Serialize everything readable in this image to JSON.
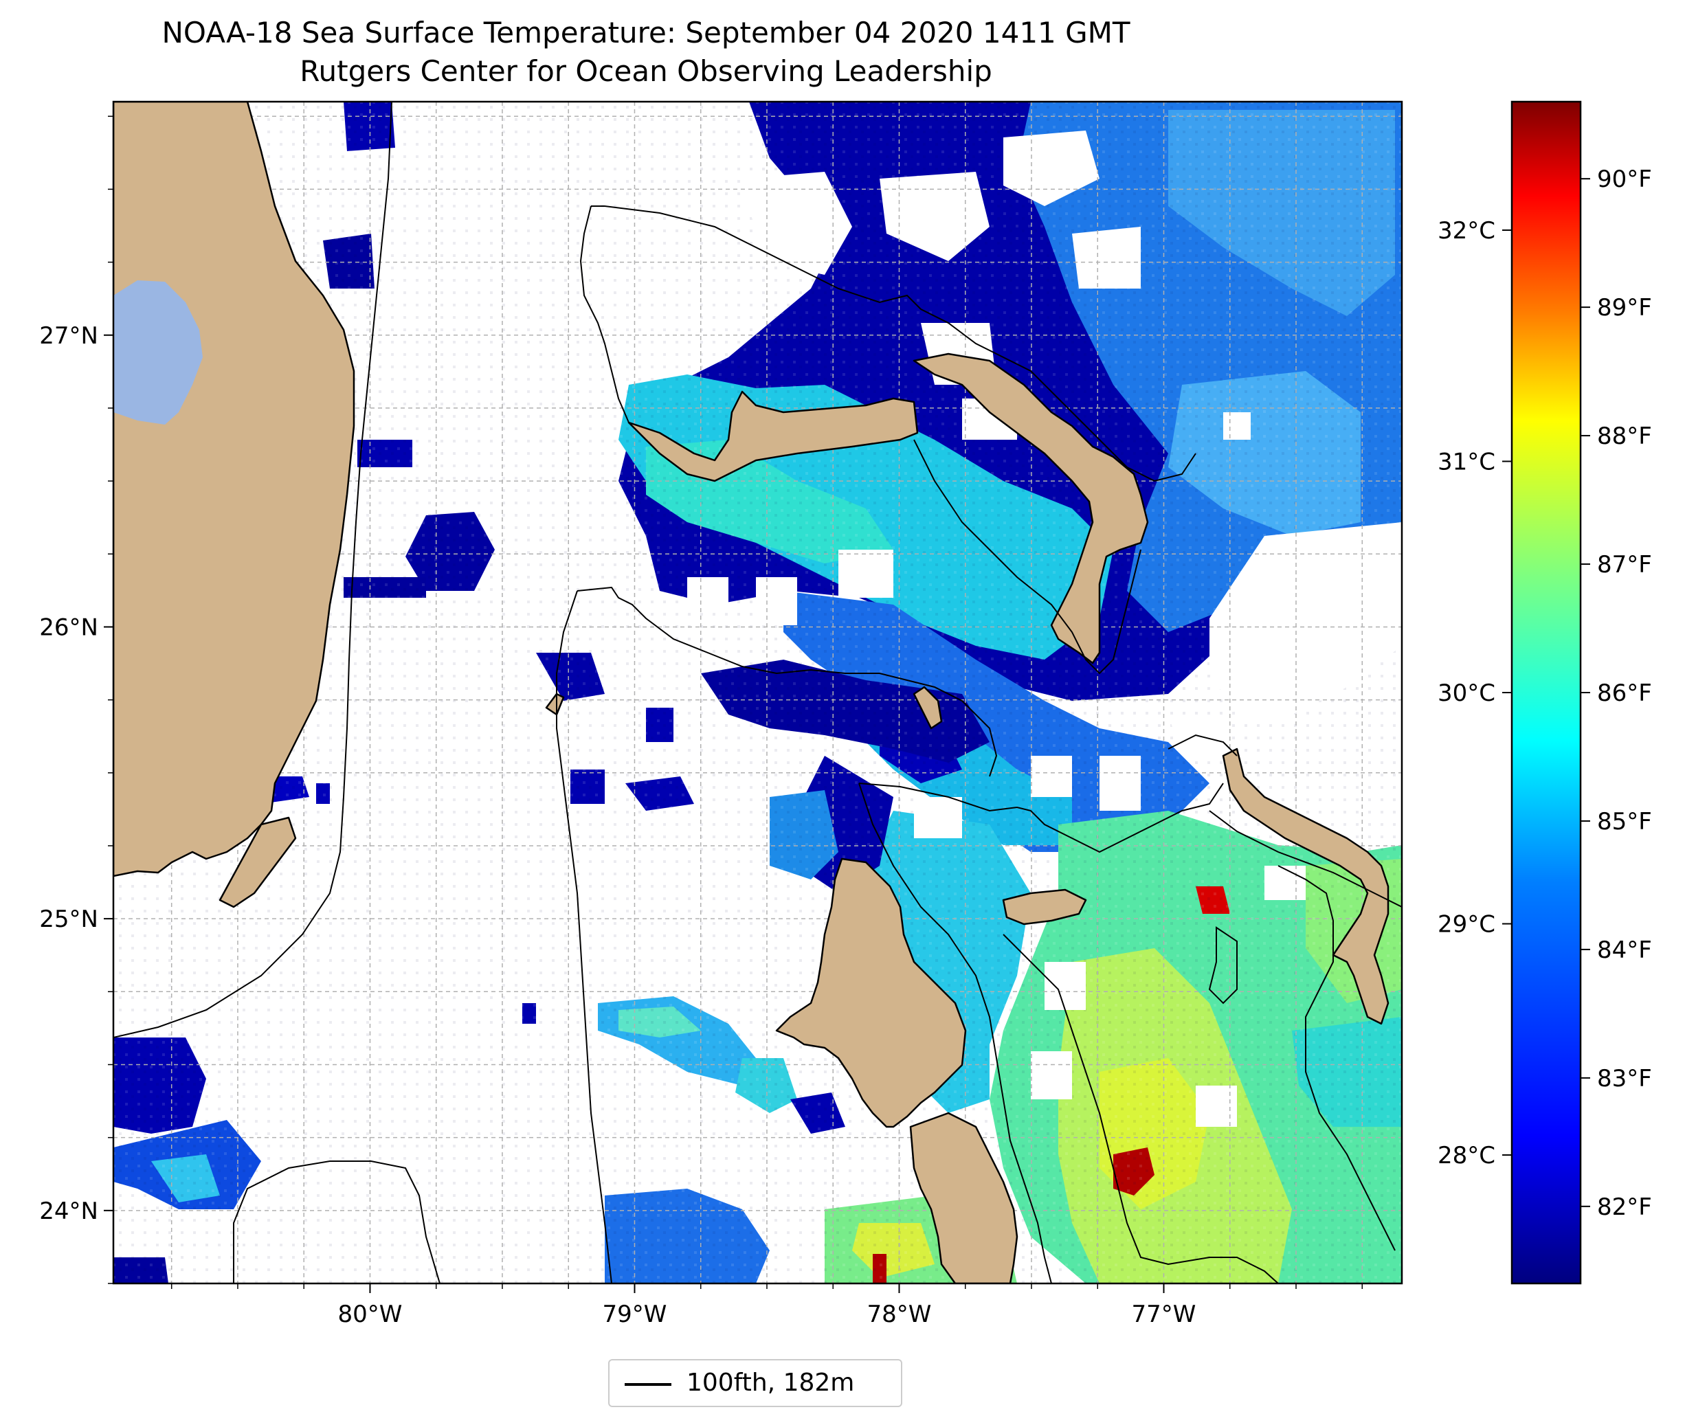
{
  "title": {
    "line1": "NOAA-18 Sea Surface Temperature: September 04 2020 1411 GMT",
    "line2": "Rutgers Center for Ocean Observing Leadership"
  },
  "map": {
    "lon_range": [
      -80.97,
      -76.1
    ],
    "lat_range": [
      23.75,
      27.8
    ],
    "x_ticks": [
      "80°W",
      "79°W",
      "78°W",
      "77°W"
    ],
    "x_tick_values": [
      -80,
      -79,
      -78,
      -77
    ],
    "y_ticks": [
      "27°N",
      "26°N",
      "25°N",
      "24°N"
    ],
    "y_tick_values": [
      27,
      26,
      25,
      24
    ],
    "grid": true,
    "land_color": "#d2b48c",
    "lake_color": "#9ab6e3",
    "places": [
      "Florida",
      "Lake Okeechobee",
      "Grand Bahama",
      "Great Abaco",
      "Bimini",
      "Andros",
      "Nassau / New Providence",
      "Eleuthera",
      "Exuma Cays"
    ]
  },
  "colorbar": {
    "colormap": "jet",
    "colors": [
      "#00007f",
      "#0000ff",
      "#007fff",
      "#00ffff",
      "#7fff7f",
      "#ffff00",
      "#ff7f00",
      "#ff0000",
      "#7f0000"
    ],
    "range_f": [
      81.4,
      90.6
    ],
    "f_ticks": [
      "90°F",
      "89°F",
      "88°F",
      "87°F",
      "86°F",
      "85°F",
      "84°F",
      "83°F",
      "82°F"
    ],
    "c_ticks": [
      "32°C",
      "31°C",
      "30°C",
      "29°C",
      "28°C"
    ]
  },
  "legend": {
    "label": "100fth, 182m",
    "line_color": "#000000"
  }
}
